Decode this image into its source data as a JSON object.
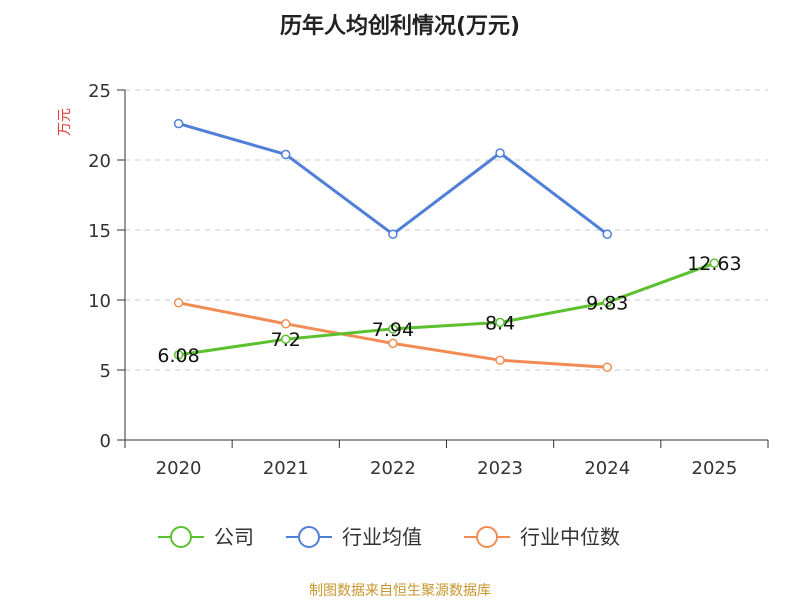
{
  "chart_data": {
    "type": "line",
    "title": "历年人均创利情况(万元)",
    "ylabel": "万元",
    "xlabel": "",
    "categories": [
      "2020",
      "2021",
      "2022",
      "2023",
      "2024",
      "2025"
    ],
    "ylim": [
      0,
      25
    ],
    "yticks": [
      0,
      5,
      10,
      15,
      20,
      25
    ],
    "grid": true,
    "legend_position": "bottom",
    "series": [
      {
        "name": "公司",
        "color": "#5cc02f",
        "values": [
          6.08,
          7.2,
          7.94,
          8.4,
          9.83,
          12.63
        ],
        "labels": [
          "6.08",
          "7.2",
          "7.94",
          "8.4",
          "9.83",
          "12.63"
        ]
      },
      {
        "name": "行业均值",
        "color": "#4f7fd8",
        "values": [
          22.6,
          20.4,
          14.7,
          20.5,
          14.7,
          null
        ]
      },
      {
        "name": "行业中位数",
        "color": "#f28c54",
        "values": [
          9.8,
          8.3,
          6.9,
          5.7,
          5.2,
          null
        ]
      }
    ],
    "source": "制图数据来自恒生聚源数据库"
  }
}
